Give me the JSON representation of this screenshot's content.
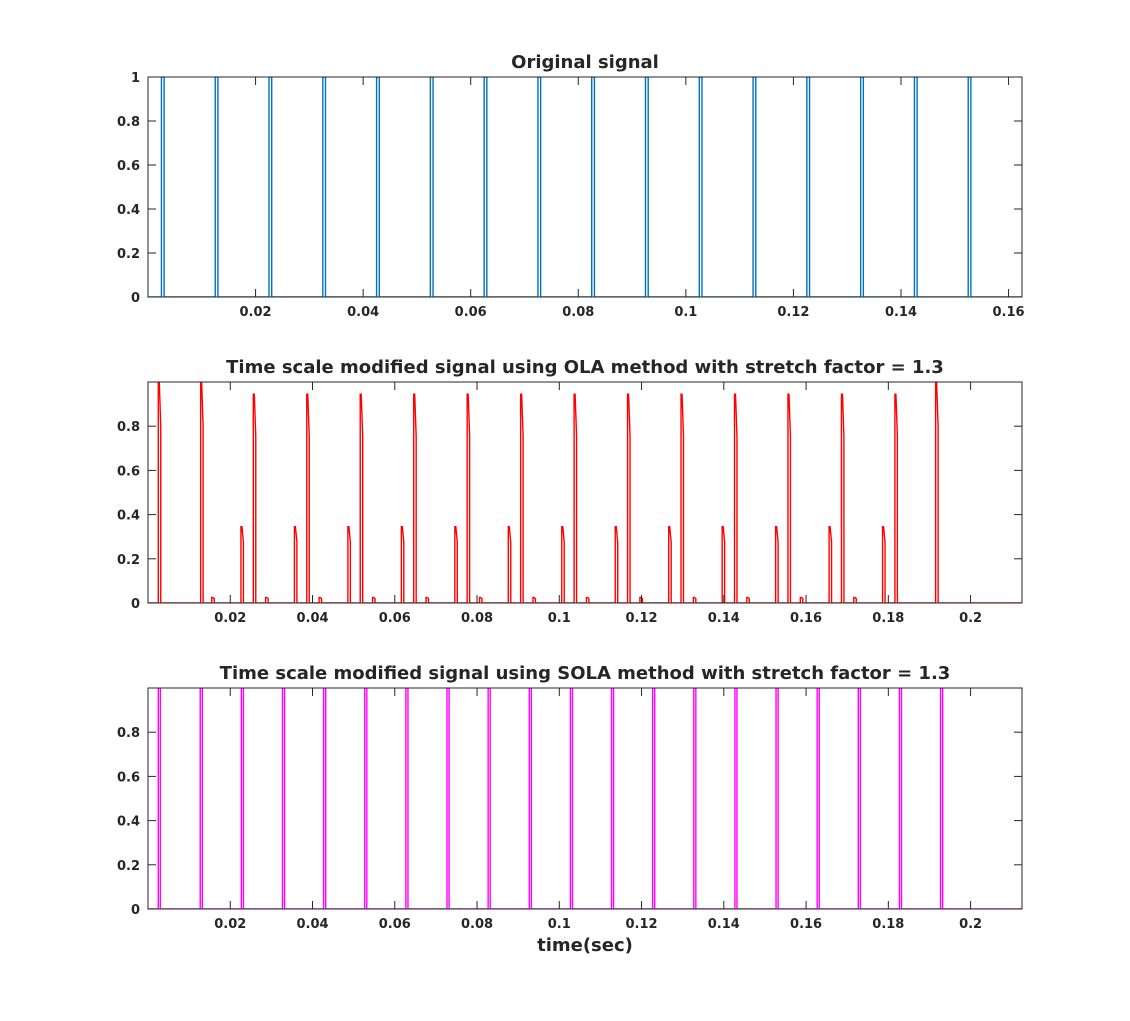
{
  "chart_data": [
    {
      "type": "line",
      "title": "Original signal",
      "xlabel": "",
      "ylabel": "",
      "xlim": [
        0,
        0.1625
      ],
      "ylim": [
        0,
        1
      ],
      "grid": false,
      "xticks": [
        "0.02",
        "0.04",
        "0.06",
        "0.08",
        "0.1",
        "0.12",
        "0.14",
        "0.16"
      ],
      "xtick_values": [
        0.02,
        0.04,
        0.06,
        0.08,
        0.1,
        0.12,
        0.14,
        0.16
      ],
      "yticks": [
        "0",
        "0.2",
        "0.4",
        "0.6",
        "0.8",
        "1"
      ],
      "ytick_values": [
        0,
        0.2,
        0.4,
        0.6,
        0.8,
        1
      ],
      "series": [
        {
          "color": "#0072BD",
          "pulse_type": "rect",
          "pulse_width": 0.0005,
          "pulses": [
            {
              "t": 0.0025,
              "a": 1
            },
            {
              "t": 0.0125,
              "a": 1
            },
            {
              "t": 0.0225,
              "a": 1
            },
            {
              "t": 0.0325,
              "a": 1
            },
            {
              "t": 0.0425,
              "a": 1
            },
            {
              "t": 0.0525,
              "a": 1
            },
            {
              "t": 0.0625,
              "a": 1
            },
            {
              "t": 0.0725,
              "a": 1
            },
            {
              "t": 0.0825,
              "a": 1
            },
            {
              "t": 0.0925,
              "a": 1
            },
            {
              "t": 0.1025,
              "a": 1
            },
            {
              "t": 0.1125,
              "a": 1
            },
            {
              "t": 0.1225,
              "a": 1
            },
            {
              "t": 0.1325,
              "a": 1
            },
            {
              "t": 0.1425,
              "a": 1
            },
            {
              "t": 0.1525,
              "a": 1
            }
          ]
        }
      ]
    },
    {
      "type": "line",
      "title": "Time scale modified signal using OLA method with stretch factor = 1.3",
      "xlabel": "",
      "ylabel": "",
      "xlim": [
        0,
        0.2125
      ],
      "ylim": [
        0,
        1
      ],
      "grid": false,
      "xticks": [
        "0.02",
        "0.04",
        "0.06",
        "0.08",
        "0.1",
        "0.12",
        "0.14",
        "0.16",
        "0.18",
        "0.2"
      ],
      "xtick_values": [
        0.02,
        0.04,
        0.06,
        0.08,
        0.1,
        0.12,
        0.14,
        0.16,
        0.18,
        0.2
      ],
      "yticks": [
        "0",
        "0.2",
        "0.4",
        "0.6",
        "0.8"
      ],
      "ytick_values": [
        0,
        0.2,
        0.4,
        0.6,
        0.8
      ],
      "series": [
        {
          "color": "#FF0000",
          "pulse_type": "decay",
          "pulse_width": 0.0006,
          "pulses": [
            {
              "t": 0.0025,
              "a": 1
            },
            {
              "t": 0.0128,
              "a": 1
            },
            {
              "t": 0.0155,
              "a": 0.025
            },
            {
              "t": 0.0226,
              "a": 0.345
            },
            {
              "t": 0.0256,
              "a": 0.945
            },
            {
              "t": 0.0286,
              "a": 0.025
            },
            {
              "t": 0.0356,
              "a": 0.345
            },
            {
              "t": 0.0386,
              "a": 0.945
            },
            {
              "t": 0.0416,
              "a": 0.025
            },
            {
              "t": 0.0486,
              "a": 0.345
            },
            {
              "t": 0.0516,
              "a": 0.945
            },
            {
              "t": 0.0546,
              "a": 0.025
            },
            {
              "t": 0.0616,
              "a": 0.345
            },
            {
              "t": 0.0646,
              "a": 0.945
            },
            {
              "t": 0.0676,
              "a": 0.025
            },
            {
              "t": 0.0746,
              "a": 0.345
            },
            {
              "t": 0.0776,
              "a": 0.945
            },
            {
              "t": 0.0806,
              "a": 0.025
            },
            {
              "t": 0.0876,
              "a": 0.345
            },
            {
              "t": 0.0906,
              "a": 0.945
            },
            {
              "t": 0.0936,
              "a": 0.025
            },
            {
              "t": 0.1006,
              "a": 0.345
            },
            {
              "t": 0.1036,
              "a": 0.945
            },
            {
              "t": 0.1066,
              "a": 0.025
            },
            {
              "t": 0.1136,
              "a": 0.345
            },
            {
              "t": 0.1166,
              "a": 0.945
            },
            {
              "t": 0.1196,
              "a": 0.025
            },
            {
              "t": 0.1266,
              "a": 0.345
            },
            {
              "t": 0.1296,
              "a": 0.945
            },
            {
              "t": 0.1326,
              "a": 0.025
            },
            {
              "t": 0.1396,
              "a": 0.345
            },
            {
              "t": 0.1426,
              "a": 0.945
            },
            {
              "t": 0.1456,
              "a": 0.025
            },
            {
              "t": 0.1526,
              "a": 0.345
            },
            {
              "t": 0.1556,
              "a": 0.945
            },
            {
              "t": 0.1586,
              "a": 0.025
            },
            {
              "t": 0.1656,
              "a": 0.345
            },
            {
              "t": 0.1686,
              "a": 0.945
            },
            {
              "t": 0.1716,
              "a": 0.025
            },
            {
              "t": 0.1786,
              "a": 0.345
            },
            {
              "t": 0.1816,
              "a": 0.945
            },
            {
              "t": 0.1915,
              "a": 1
            }
          ]
        }
      ]
    },
    {
      "type": "line",
      "title": "Time scale modified signal using SOLA method with stretch factor = 1.3",
      "xlabel": "time(sec)",
      "ylabel": "",
      "xlim": [
        0,
        0.2125
      ],
      "ylim": [
        0,
        1
      ],
      "grid": false,
      "xticks": [
        "0.02",
        "0.04",
        "0.06",
        "0.08",
        "0.1",
        "0.12",
        "0.14",
        "0.16",
        "0.18",
        "0.2"
      ],
      "xtick_values": [
        0.02,
        0.04,
        0.06,
        0.08,
        0.1,
        0.12,
        0.14,
        0.16,
        0.18,
        0.2
      ],
      "yticks": [
        "0",
        "0.2",
        "0.4",
        "0.6",
        "0.8"
      ],
      "ytick_values": [
        0,
        0.2,
        0.4,
        0.6,
        0.8
      ],
      "series": [
        {
          "color": "#FF00FF",
          "pulse_type": "rect",
          "pulse_width": 0.0005,
          "pulses": [
            {
              "t": 0.0025,
              "a": 1
            },
            {
              "t": 0.0127,
              "a": 1
            },
            {
              "t": 0.0227,
              "a": 1
            },
            {
              "t": 0.0327,
              "a": 1
            },
            {
              "t": 0.0427,
              "a": 1
            },
            {
              "t": 0.0527,
              "a": 1
            },
            {
              "t": 0.0627,
              "a": 1
            },
            {
              "t": 0.0727,
              "a": 1
            },
            {
              "t": 0.0827,
              "a": 1
            },
            {
              "t": 0.0927,
              "a": 1
            },
            {
              "t": 0.1027,
              "a": 1
            },
            {
              "t": 0.1127,
              "a": 1
            },
            {
              "t": 0.1227,
              "a": 1
            },
            {
              "t": 0.1327,
              "a": 1
            },
            {
              "t": 0.1427,
              "a": 1
            },
            {
              "t": 0.1527,
              "a": 1
            },
            {
              "t": 0.1627,
              "a": 1
            },
            {
              "t": 0.1727,
              "a": 1
            },
            {
              "t": 0.1827,
              "a": 1
            },
            {
              "t": 0.1927,
              "a": 1
            }
          ]
        }
      ]
    }
  ]
}
